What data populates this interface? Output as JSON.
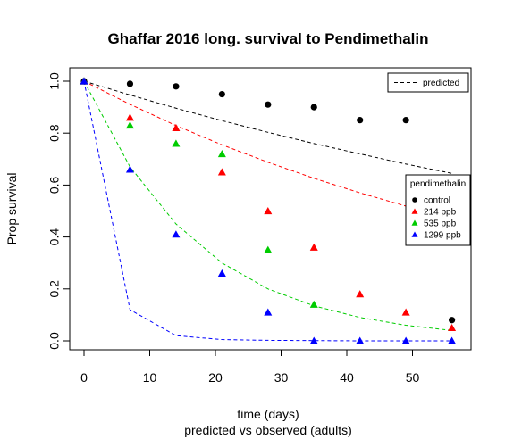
{
  "chart_data": {
    "type": "scatter",
    "title": "Ghaffar 2016 long. survival to Pendimethalin",
    "xlabel": "time (days)",
    "subtitle": "predicted vs observed (adults)",
    "ylabel": "Prop survival",
    "xlim": [
      0,
      56
    ],
    "ylim": [
      0,
      1
    ],
    "x_ticks": [
      0,
      10,
      20,
      30,
      40,
      50
    ],
    "y_ticks": [
      0.0,
      0.2,
      0.4,
      0.6,
      0.8,
      1.0
    ],
    "x_tick_labels": [
      "0",
      "10",
      "20",
      "30",
      "40",
      "50"
    ],
    "y_tick_labels": [
      "0.0",
      "0.2",
      "0.4",
      "0.6",
      "0.8",
      "1.0"
    ],
    "grid": false,
    "legend_line": {
      "label": "predicted",
      "placement": "top-right"
    },
    "legend_group": {
      "title": "pendimethalin",
      "placement": "right"
    },
    "series": [
      {
        "name": "control",
        "color": "#000000",
        "marker": "circle",
        "x": [
          0,
          7,
          14,
          21,
          28,
          35,
          42,
          49,
          56
        ],
        "observed": [
          1.0,
          0.99,
          0.98,
          0.95,
          0.91,
          0.9,
          0.85,
          0.85,
          0.08
        ],
        "predicted": [
          1.0,
          0.947,
          0.896,
          0.848,
          0.803,
          0.76,
          0.72,
          0.681,
          0.645
        ]
      },
      {
        "name": "214 ppb",
        "color": "#ff0000",
        "marker": "triangle",
        "x": [
          0,
          7,
          14,
          21,
          28,
          35,
          42,
          49,
          56
        ],
        "observed": [
          1.0,
          0.86,
          0.82,
          0.65,
          0.5,
          0.36,
          0.18,
          0.11,
          0.05
        ],
        "predicted": [
          1.0,
          0.911,
          0.829,
          0.755,
          0.688,
          0.626,
          0.57,
          0.519,
          0.473
        ]
      },
      {
        "name": "535 ppb",
        "color": "#00cc00",
        "marker": "triangle",
        "x": [
          0,
          7,
          14,
          21,
          28,
          35,
          42,
          49,
          56
        ],
        "observed": [
          1.0,
          0.83,
          0.76,
          0.72,
          0.35,
          0.14,
          null,
          null,
          null
        ],
        "predicted": [
          1.0,
          0.67,
          0.45,
          0.3,
          0.2,
          0.135,
          0.09,
          0.06,
          0.04
        ]
      },
      {
        "name": "1299 ppb",
        "color": "#0000ff",
        "marker": "triangle",
        "x": [
          0,
          7,
          14,
          21,
          28,
          35,
          42,
          49,
          56
        ],
        "observed": [
          1.0,
          0.66,
          0.41,
          0.26,
          0.11,
          0.0,
          0.0,
          0.0,
          0.0
        ],
        "predicted": [
          1.0,
          0.12,
          0.02,
          0.005,
          0.002,
          0.001,
          0.0,
          0.0,
          0.0
        ]
      }
    ]
  }
}
